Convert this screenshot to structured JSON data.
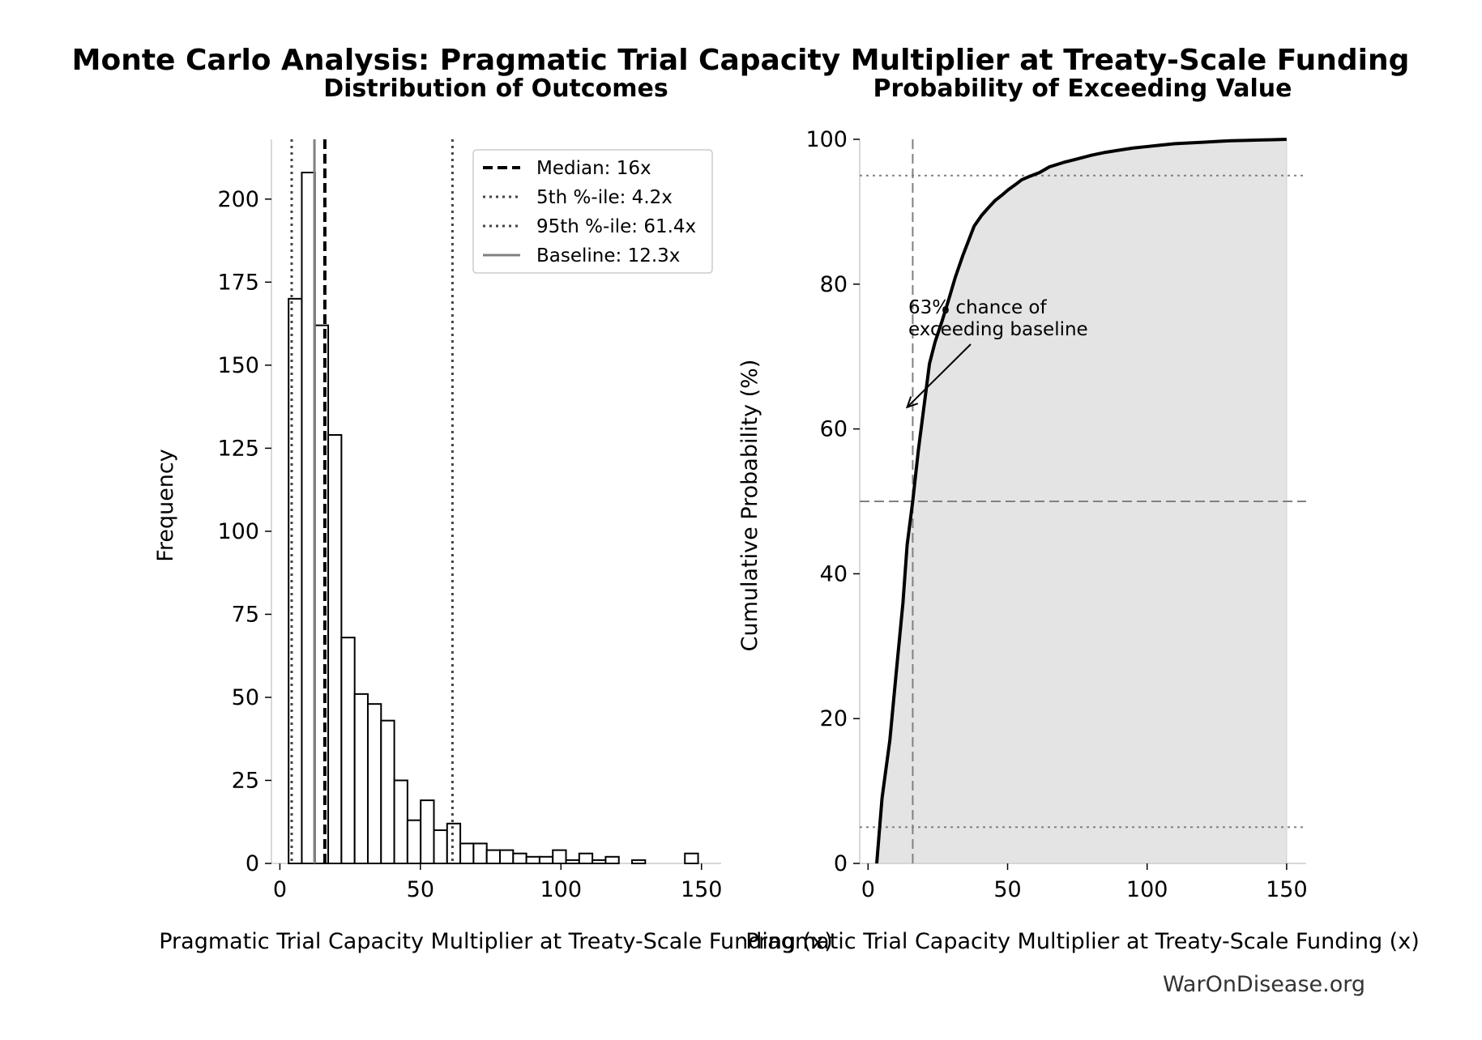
{
  "figure": {
    "title": "Monte Carlo Analysis: Pragmatic Trial Capacity Multiplier at Treaty-Scale Funding",
    "credit": "WarOnDisease.org"
  },
  "chart_data": [
    {
      "type": "bar",
      "title": "Distribution of Outcomes",
      "xlabel": "Pragmatic Trial Capacity Multiplier at Treaty-Scale Funding (x)",
      "ylabel": "Frequency",
      "xlim": [
        -3,
        157
      ],
      "ylim": [
        0,
        218
      ],
      "xticks": [
        0,
        50,
        100,
        150
      ],
      "yticks": [
        0,
        25,
        50,
        75,
        100,
        125,
        150,
        175,
        200
      ],
      "bin_width": 4.7,
      "bin_starts": [
        3.1,
        7.8,
        12.5,
        17.2,
        21.9,
        26.6,
        31.3,
        36.0,
        40.7,
        45.4,
        50.1,
        54.8,
        59.5,
        64.2,
        68.9,
        73.6,
        78.3,
        83.0,
        87.7,
        92.4,
        97.1,
        101.8,
        106.5,
        111.2,
        115.9,
        120.6,
        125.3,
        130.0,
        134.7,
        139.4,
        144.1,
        148.8
      ],
      "values": [
        170,
        208,
        162,
        129,
        68,
        51,
        48,
        43,
        25,
        13,
        19,
        10,
        12,
        6,
        6,
        4,
        4,
        3,
        2,
        2,
        4,
        1,
        3,
        1,
        2,
        0,
        1,
        0,
        0,
        0,
        3,
        0
      ],
      "reference_lines": [
        {
          "label": "Median: 16x",
          "x": 16,
          "style": "dashed",
          "color": "#000000"
        },
        {
          "label": "5th %-ile: 4.2x",
          "x": 4.2,
          "style": "dotted",
          "color": "#444444"
        },
        {
          "label": "95th %-ile: 61.4x",
          "x": 61.4,
          "style": "dotted",
          "color": "#444444"
        },
        {
          "label": "Baseline: 12.3x",
          "x": 12.3,
          "style": "solid",
          "color": "#808080"
        }
      ],
      "legend": "top-right",
      "grid": false
    },
    {
      "type": "area",
      "title": "Probability of Exceeding Value",
      "xlabel": "Pragmatic Trial Capacity Multiplier at Treaty-Scale Funding (x)",
      "ylabel": "Cumulative Probability (%)",
      "xlim": [
        -3,
        157
      ],
      "ylim": [
        0,
        100
      ],
      "xticks": [
        0,
        50,
        100,
        150
      ],
      "yticks": [
        0,
        20,
        40,
        60,
        80,
        100
      ],
      "x": [
        3.1,
        5,
        7.8,
        10,
        12.5,
        14,
        16,
        18,
        20,
        22,
        24,
        26.6,
        29,
        31.3,
        34,
        36,
        38,
        40.7,
        43,
        45.4,
        48,
        50.1,
        53,
        55,
        58,
        61.4,
        65,
        70,
        75,
        80,
        85,
        90,
        95,
        100,
        105,
        110,
        115,
        120,
        125,
        130,
        135,
        140,
        145,
        150
      ],
      "y": [
        0,
        9,
        17,
        26,
        36,
        44,
        50,
        57,
        63,
        69,
        72,
        75,
        78,
        81,
        84,
        86,
        88,
        89.5,
        90.5,
        91.5,
        92.3,
        93,
        93.8,
        94.4,
        94.9,
        95.4,
        96.2,
        96.8,
        97.3,
        97.8,
        98.2,
        98.5,
        98.8,
        99.0,
        99.2,
        99.4,
        99.5,
        99.6,
        99.7,
        99.8,
        99.85,
        99.9,
        99.95,
        100
      ],
      "reference_lines": [
        {
          "orientation": "vertical",
          "x": 16,
          "style": "dashed",
          "color": "#808080"
        },
        {
          "orientation": "horizontal",
          "y": 50,
          "style": "dashed",
          "color": "#808080"
        },
        {
          "orientation": "horizontal",
          "y": 5,
          "style": "dotted",
          "color": "#808080"
        },
        {
          "orientation": "horizontal",
          "y": 95,
          "style": "dotted",
          "color": "#808080"
        }
      ],
      "annotation": {
        "lines": [
          "63% chance of",
          "exceeding baseline"
        ],
        "arrow_to": [
          14,
          63
        ]
      },
      "fill_color": "#e4e4e4",
      "line_color": "#000000",
      "grid": false
    }
  ]
}
